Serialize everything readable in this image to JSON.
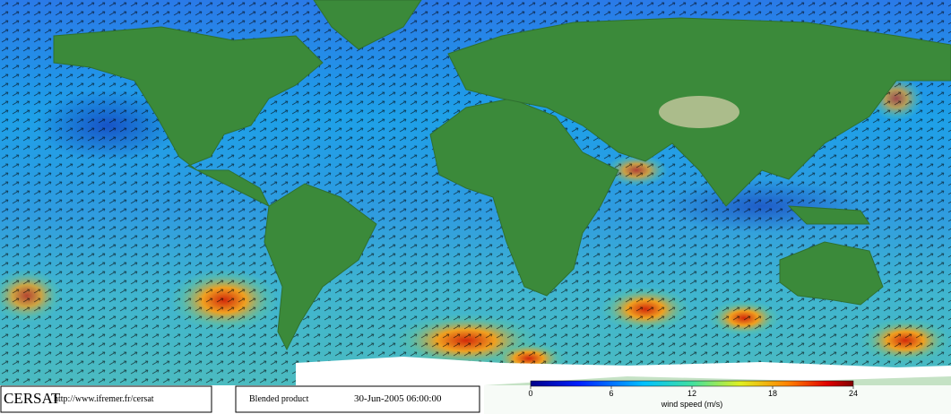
{
  "header": {
    "logo": "CERSAT",
    "url": "http://www.ifremer.fr/cersat",
    "product": "Blended product",
    "date": "30-Jun-2005 06:00:00"
  },
  "colorbar": {
    "lim": [
      0,
      24
    ],
    "ticks": [
      0,
      6,
      12,
      18,
      24
    ],
    "label": "wind speed (m/s)"
  }
}
